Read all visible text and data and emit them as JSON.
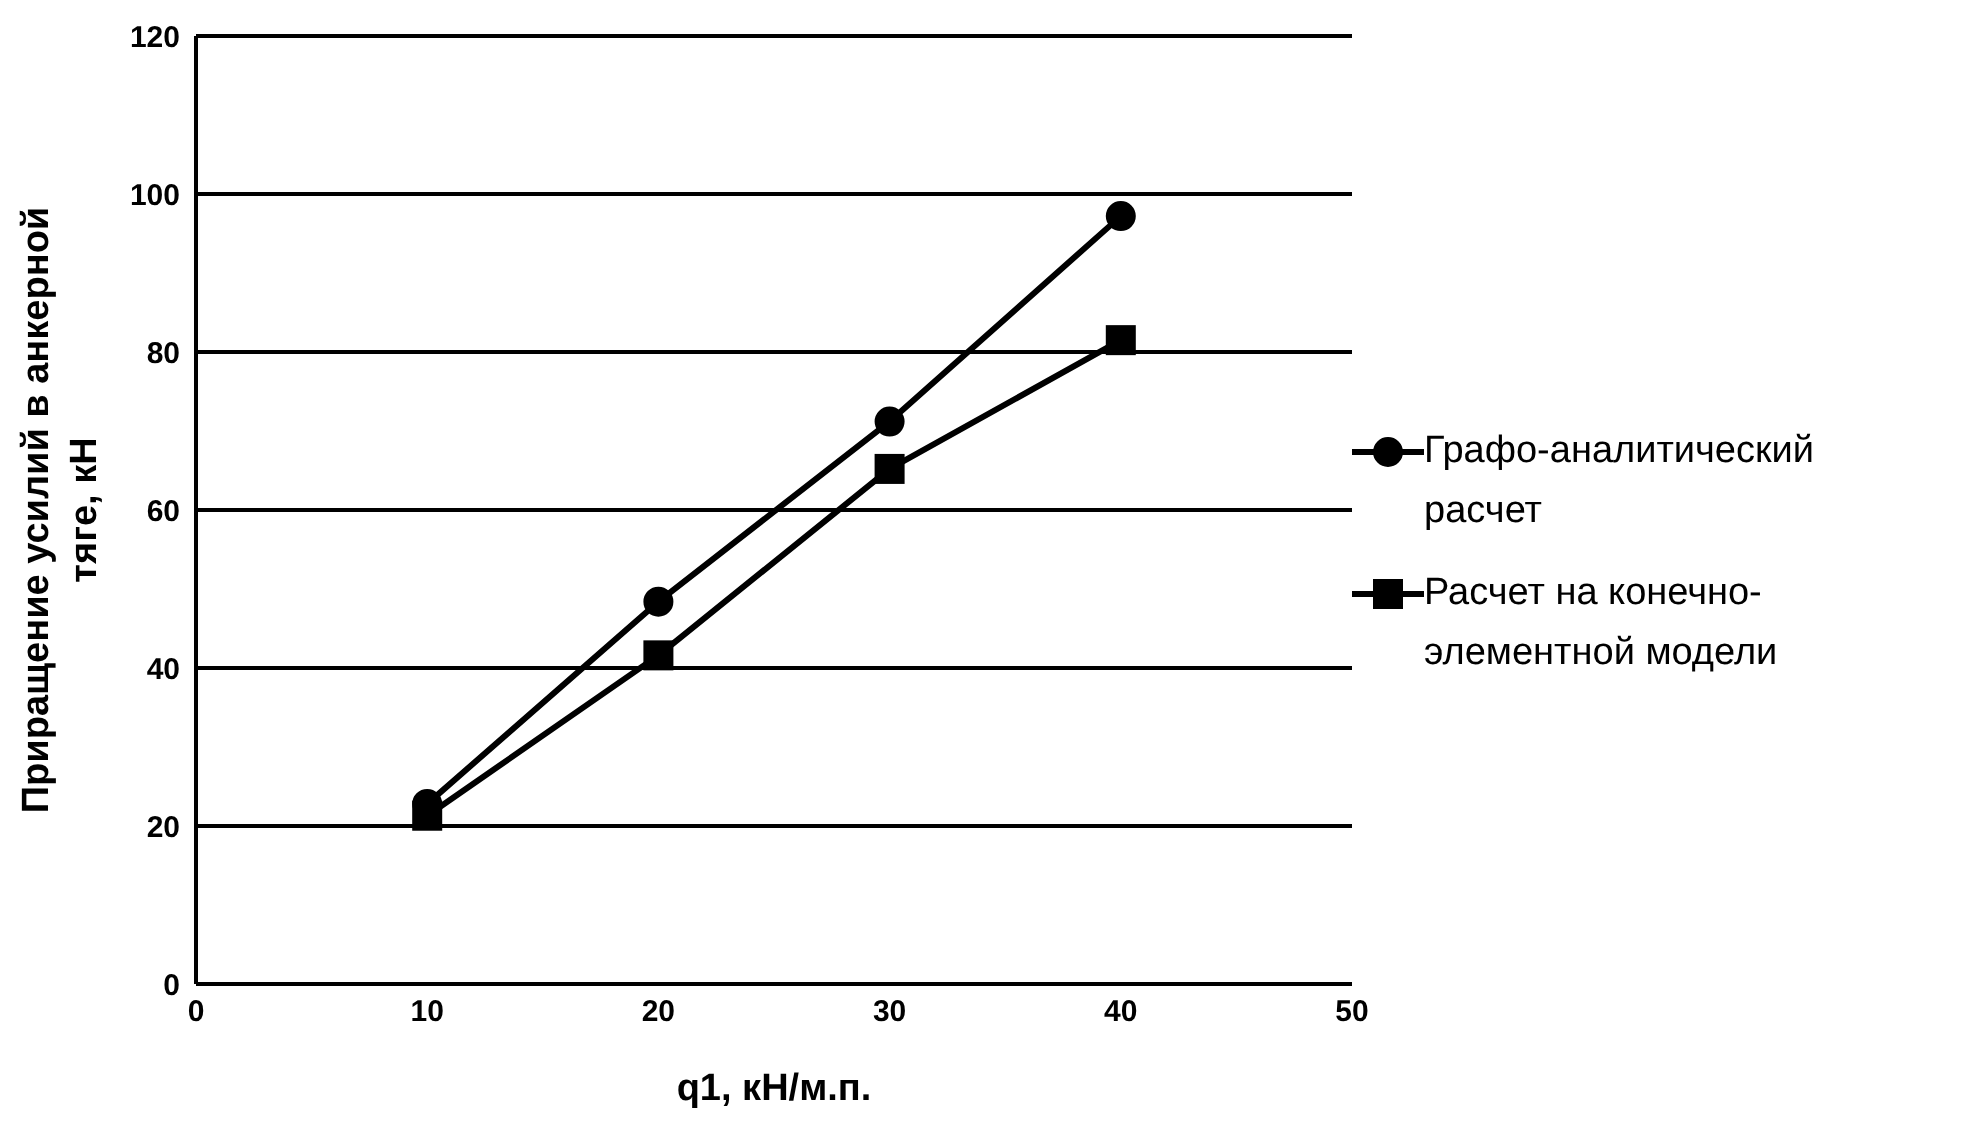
{
  "chart_data": {
    "type": "line",
    "xlabel": "q1, кН/м.п.",
    "ylabel": "Приращение усилий в анкерной тяге, кН",
    "x": [
      10,
      20,
      30,
      40
    ],
    "xlim": [
      0,
      50
    ],
    "xticks": [
      0,
      10,
      20,
      30,
      40,
      50
    ],
    "ylim": [
      0,
      120
    ],
    "yticks": [
      0,
      20,
      40,
      60,
      80,
      100,
      120
    ],
    "grid": "y",
    "legend": "right",
    "series": [
      {
        "name": "Графо-аналитический расчет",
        "color": "#000000",
        "marker": "circle",
        "values": [
          22.8,
          48.4,
          71.2,
          97.2
        ]
      },
      {
        "name": "Расчет на конечно-элементной модели",
        "color": "#000000",
        "marker": "square",
        "values": [
          21.3,
          41.6,
          65.2,
          81.5
        ]
      }
    ]
  }
}
